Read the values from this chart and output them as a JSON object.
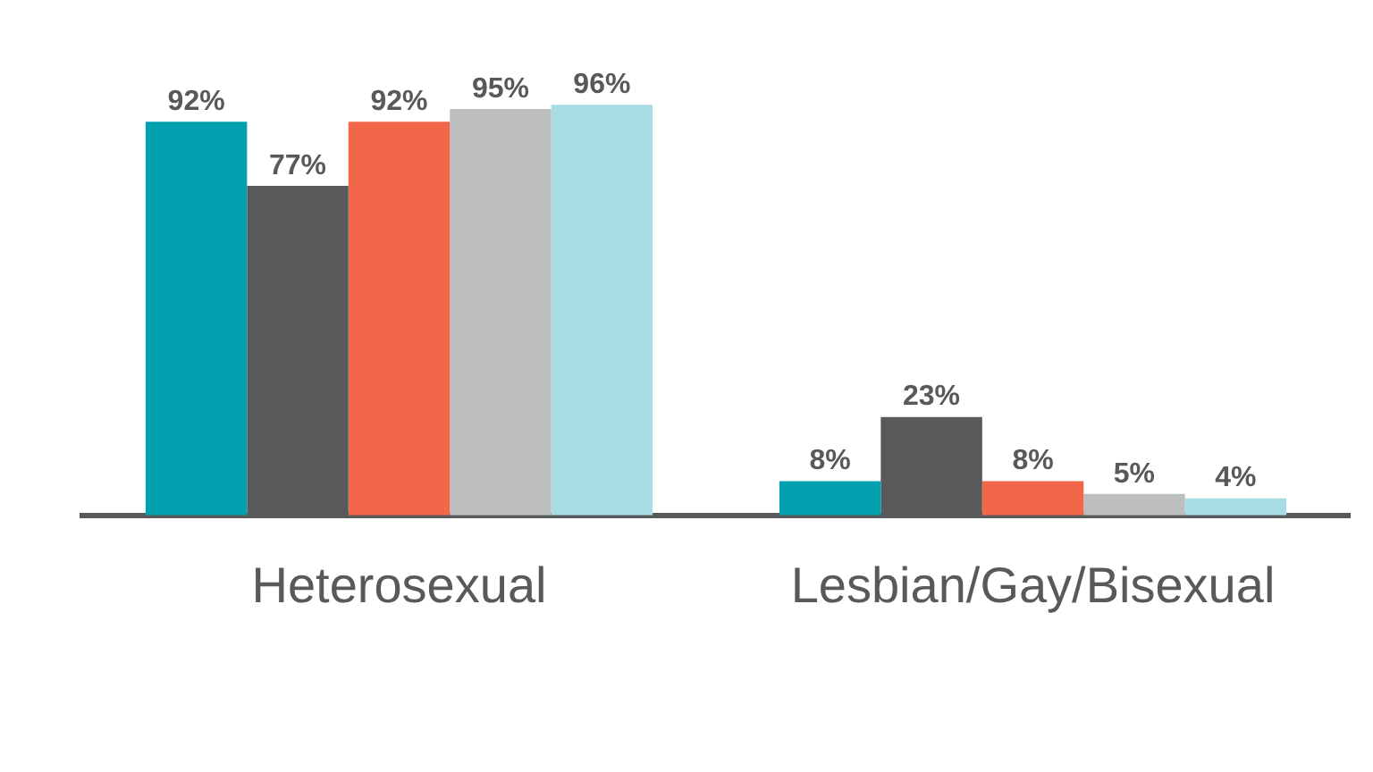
{
  "chart_data": {
    "type": "bar",
    "categories": [
      "Heterosexual",
      "Lesbian/Gay/Bisexual"
    ],
    "series": [
      {
        "color": "#00a0ae",
        "values": [
          92,
          8
        ],
        "value_labels": [
          "92%",
          "8%"
        ]
      },
      {
        "color": "#58595b",
        "values": [
          77,
          23
        ],
        "value_labels": [
          "77%",
          "23%"
        ]
      },
      {
        "color": "#f26649",
        "values": [
          92,
          8
        ],
        "value_labels": [
          "92%",
          "8%"
        ]
      },
      {
        "color": "#bcbec0",
        "values": [
          95,
          5
        ],
        "value_labels": [
          "95%",
          "5%"
        ]
      },
      {
        "color": "#a8dde3",
        "values": [
          96,
          4
        ],
        "value_labels": [
          "96%",
          "4%"
        ]
      }
    ],
    "relative": false,
    "grid": false,
    "legend": false
  }
}
